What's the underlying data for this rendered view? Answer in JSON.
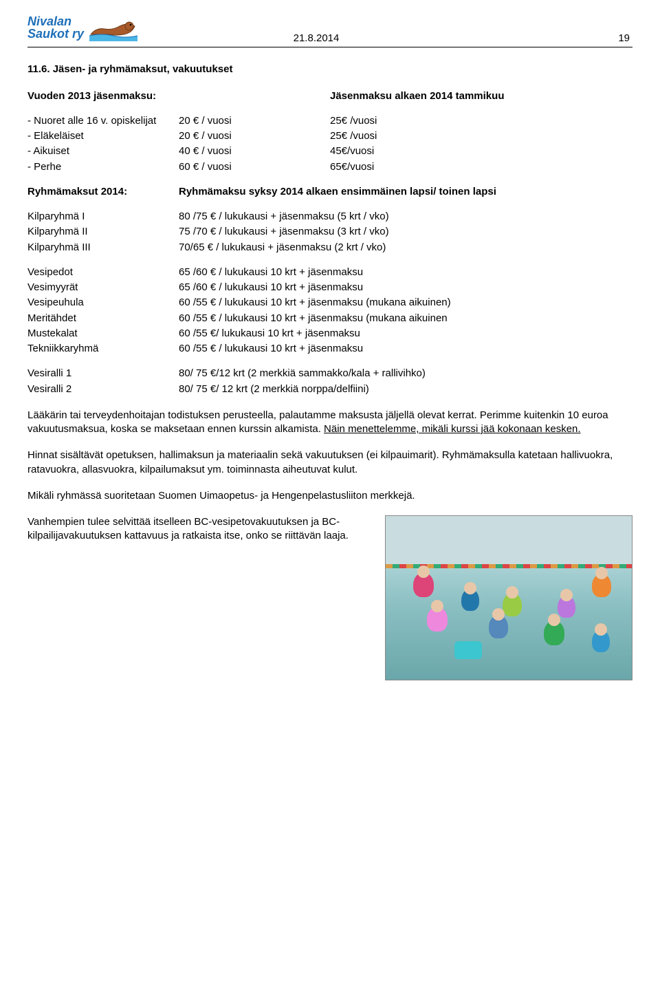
{
  "header": {
    "logo_line1": "Nivalan",
    "logo_line2": "Saukot ry",
    "date": "21.8.2014",
    "page_num": "19"
  },
  "section_title": "11.6. Jäsen- ja ryhmämaksut, vakuutukset",
  "fees_header_left": "Vuoden 2013 jäsenmaksu:",
  "fees_header_right": "Jäsenmaksu alkaen 2014 tammikuu",
  "fee_rows": [
    {
      "label": "- Nuoret alle 16 v. opiskelijat",
      "a": "20 € / vuosi",
      "b": "25€ /vuosi"
    },
    {
      "label": "- Eläkeläiset",
      "a": "20 € / vuosi",
      "b": "25€ /vuosi"
    },
    {
      "label": "- Aikuiset",
      "a": "40 € / vuosi",
      "b": "45€/vuosi"
    },
    {
      "label": "- Perhe",
      "a": "60 € / vuosi",
      "b": "65€/vuosi"
    }
  ],
  "group_header_left": "Ryhmämaksut 2014:",
  "group_header_right": "Ryhmämaksu syksy 2014 alkaen ensimmäinen lapsi/ toinen lapsi",
  "kilpa_rows": [
    {
      "label": "Kilparyhmä I",
      "val": "80 /75 € / lukukausi + jäsenmaksu (5 krt / vko)"
    },
    {
      "label": "Kilparyhmä II",
      "val": "75 /70 € / lukukausi + jäsenmaksu (3 krt / vko)"
    },
    {
      "label": "Kilparyhmä III",
      "val": "70/65 € / lukukausi + jäsenmaksu (2 krt / vko)"
    }
  ],
  "course_rows": [
    {
      "label": "Vesipedot",
      "val": "65 /60 € / lukukausi 10 krt + jäsenmaksu"
    },
    {
      "label": "Vesimyyrät",
      "val": "65 /60 € / lukukausi 10 krt + jäsenmaksu"
    },
    {
      "label": "Vesipeuhula",
      "val": "60 /55 € / lukukausi 10 krt + jäsenmaksu (mukana aikuinen)"
    },
    {
      "label": "Meritähdet",
      "val": "60 /55 € / lukukausi 10 krt + jäsenmaksu (mukana aikuinen"
    },
    {
      "label": "Mustekalat",
      "val": "60 /55 €/ lukukausi 10 krt + jäsenmaksu"
    },
    {
      "label": "Tekniikkaryhmä",
      "val": "60 /55 € / lukukausi 10 krt + jäsenmaksu"
    }
  ],
  "ralli_rows": [
    {
      "label": "Vesiralli 1",
      "val": "80/ 75 €/12 krt (2 merkkiä sammakko/kala + rallivihko)"
    },
    {
      "label": "Vesiralli 2",
      "val": "80/ 75 €/ 12 krt (2 merkkiä norppa/delfiini)"
    }
  ],
  "para1_a": "Lääkärin tai terveydenhoitajan todistuksen perusteella, palautamme maksusta jäljellä olevat kerrat. Perimme kuitenkin 10 euroa vakuutusmaksua, koska se maksetaan ennen kurssin alkamista. ",
  "para1_u": "Näin menettelemme, mikäli kurssi jää kokonaan kesken.",
  "para2": "Hinnat sisältävät opetuksen, hallimaksun ja materiaalin sekä vakuutuksen (ei kilpauimarit). Ryhmämaksulla katetaan hallivuokra, ratavuokra, allasvuokra, kilpailumaksut ym. toiminnasta aiheutuvat kulut.",
  "para3": "Mikäli ryhmässä suoritetaan Suomen Uimaopetus- ja Hengenpelastusliiton merkkejä.",
  "para4": "Vanhempien tulee selvittää itselleen BC-vesipetovakuutuksen ja BC-kilpailijavakuutuksen kattavuus ja ratkaista itse, onko se riittävän laaja.",
  "colors": {
    "logo_text": "#1e6fb8",
    "otter_body": "#a85a2a",
    "otter_dark": "#6b3a18",
    "water": "#2aa9e0"
  }
}
